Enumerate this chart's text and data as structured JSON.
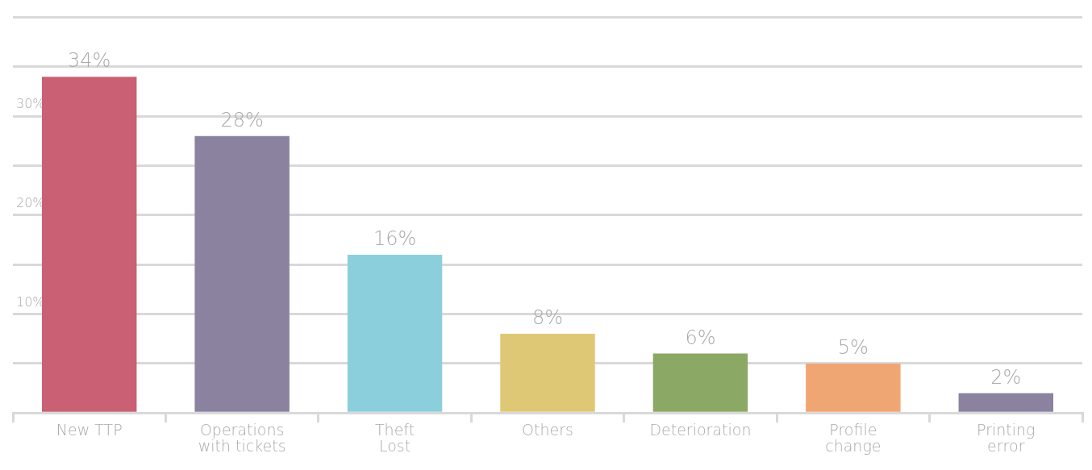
{
  "chart_data": {
    "type": "bar",
    "categories": [
      "New TTP",
      "Operations\nwith tickets",
      "Theft\nLost",
      "Others",
      "Deterioration",
      "Profile\nchange",
      "Printing\nerror"
    ],
    "values": [
      34,
      28,
      16,
      8,
      6,
      5,
      2
    ],
    "colors": [
      "#c96073",
      "#8b82a0",
      "#8ccfdc",
      "#dfc875",
      "#8ba865",
      "#f0a673",
      "#8b82a0"
    ],
    "value_labels": [
      "34%",
      "28%",
      "16%",
      "8%",
      "6%",
      "5%",
      "2%"
    ],
    "ylim": [
      0,
      40
    ],
    "yticks": [
      {
        "value": 0,
        "label": null
      },
      {
        "value": 5,
        "label": null
      },
      {
        "value": 10,
        "label": "10%"
      },
      {
        "value": 15,
        "label": null
      },
      {
        "value": 20,
        "label": "20%"
      },
      {
        "value": 25,
        "label": null
      },
      {
        "value": 30,
        "label": "30%"
      },
      {
        "value": 35,
        "label": null
      },
      {
        "value": 40,
        "label": null
      }
    ],
    "grid": "y",
    "legend": false
  }
}
